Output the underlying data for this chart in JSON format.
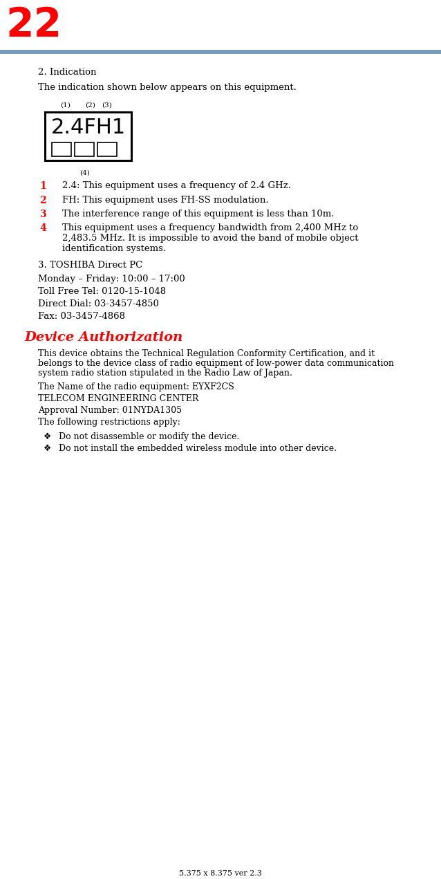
{
  "page_number": "22",
  "page_number_color": "#FF0000",
  "header_bar_color": "#7A9BB5",
  "background_color": "#FFFFFF",
  "footer_text": "5.375 x 8.375 ver 2.3",
  "section2_heading": "2. Indication",
  "section2_intro": "The indication shown below appears on this equipment.",
  "label_box_text": "2.4FH1",
  "label_above_1": "(1)",
  "label_above_2": "(2)",
  "label_above_3": "(3)",
  "label_below": "(4)",
  "items": [
    {
      "num": "1",
      "text": "2.4: This equipment uses a frequency of 2.4 GHz.",
      "lines": 1
    },
    {
      "num": "2",
      "text": "FH: This equipment uses FH-SS modulation.",
      "lines": 1
    },
    {
      "num": "3",
      "text": "The interference range of this equipment is less than 10m.",
      "lines": 1
    },
    {
      "num": "4",
      "text": "This equipment uses a frequency bandwidth from 2,400 MHz to\n2,483.5 MHz. It is impossible to avoid the band of mobile object\nidentification systems.",
      "lines": 3
    }
  ],
  "section3_heading": "3. TOSHIBA Direct PC",
  "contact_lines": [
    "Monday – Friday: 10:00 – 17:00",
    "Toll Free Tel: 0120-15-1048",
    "Direct Dial: 03-3457-4850",
    "Fax: 03-3457-4868"
  ],
  "device_auth_heading": "Device Authorization",
  "device_auth_color": "#FF0000",
  "device_auth_body_lines": [
    "This device obtains the Technical Regulation Conformity Certification, and it",
    "belongs to the device class of radio equipment of low-power data communication",
    "system radio station stipulated in the Radio Law of Japan."
  ],
  "device_auth_lines": [
    "The Name of the radio equipment: EYXF2CS",
    "TELECOM ENGINEERING CENTER",
    "Approval Number: 01NYDA1305",
    "The following restrictions apply:"
  ],
  "restrictions": [
    "Do not disassemble or modify the device.",
    "Do not install the embedded wireless module into other device."
  ],
  "bullet_char": "❖"
}
